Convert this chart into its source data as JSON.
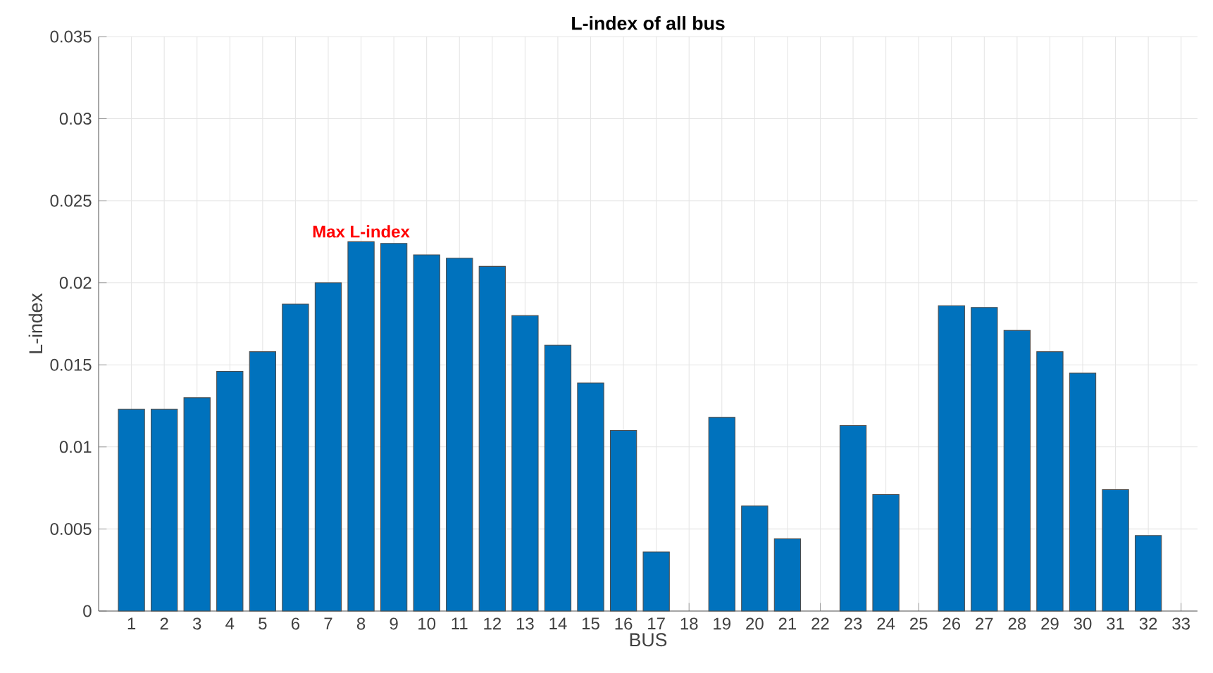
{
  "chart_data": {
    "type": "bar",
    "title": "**L-index of all bus**",
    "xlabel": "BUS",
    "ylabel": "L-index",
    "categories": [
      "1",
      "2",
      "3",
      "4",
      "5",
      "6",
      "7",
      "8",
      "9",
      "10",
      "11",
      "12",
      "13",
      "14",
      "15",
      "16",
      "17",
      "18",
      "19",
      "20",
      "21",
      "22",
      "23",
      "24",
      "25",
      "26",
      "27",
      "28",
      "29",
      "30",
      "31",
      "32",
      "33"
    ],
    "values": [
      0.0123,
      0.0123,
      0.013,
      0.0146,
      0.0158,
      0.0187,
      0.02,
      0.0225,
      0.0224,
      0.0217,
      0.0215,
      0.021,
      0.018,
      0.0162,
      0.0139,
      0.011,
      0.0036,
      null,
      0.0118,
      0.0064,
      0.0044,
      null,
      0.0113,
      0.0071,
      null,
      0.0186,
      0.0185,
      0.0171,
      0.0158,
      0.0145,
      0.0074,
      0.0046,
      null
    ],
    "color": "#0072bd",
    "ylim": [
      0,
      0.035
    ],
    "yticks": [
      0,
      0.005,
      0.01,
      0.015,
      0.02,
      0.025,
      0.03,
      0.035
    ],
    "grid": true,
    "annotations": [
      {
        "text": "**Max L-index**",
        "x": "8",
        "y": 0.0225
      }
    ]
  }
}
